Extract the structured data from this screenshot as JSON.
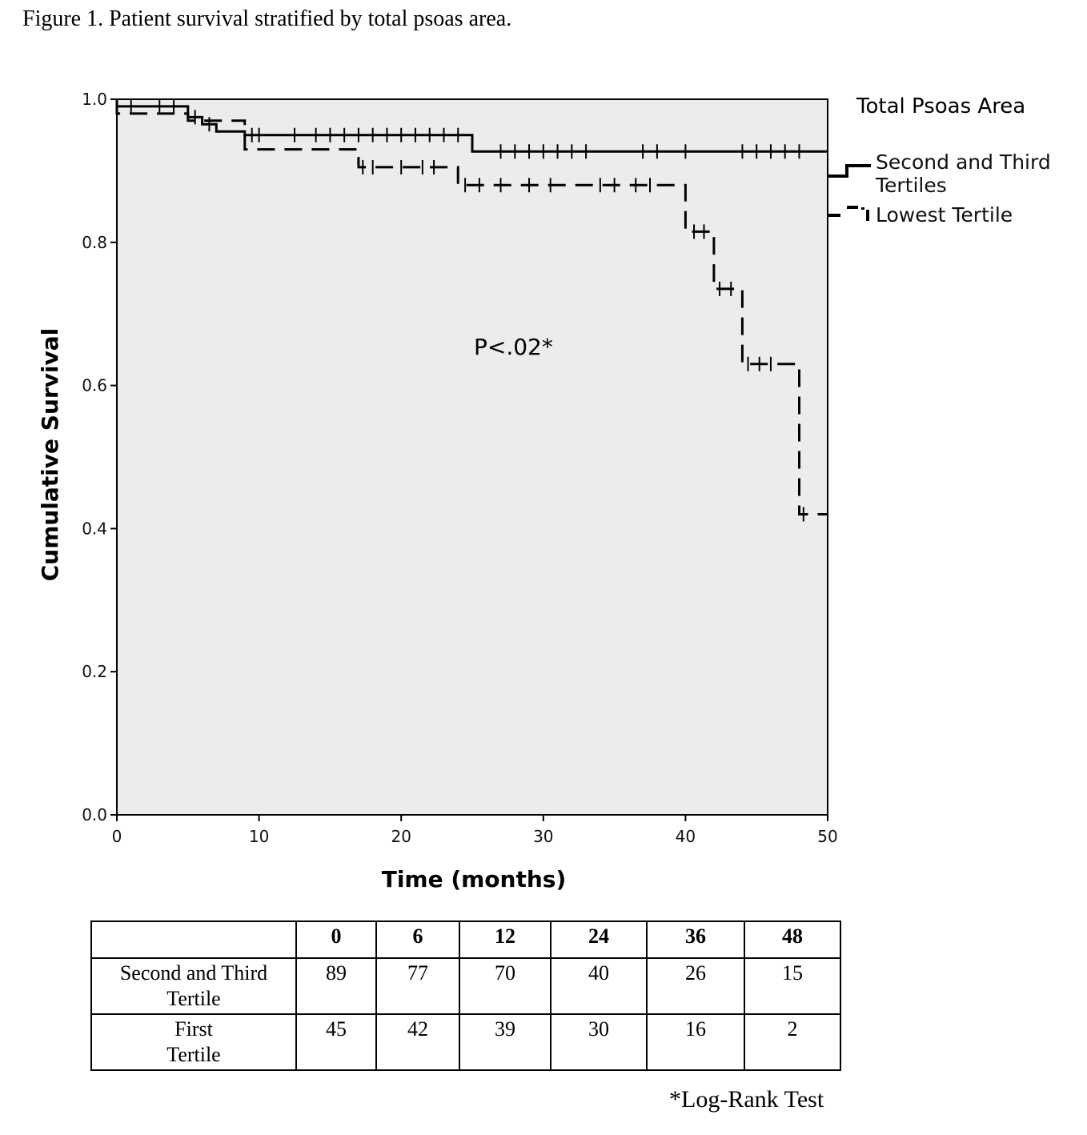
{
  "figure_title": "Figure 1. Patient survival stratified by total psoas area.",
  "legend": {
    "title": "Total Psoas Area",
    "entries": [
      {
        "label_lines": [
          "Second and Third",
          "Tertiles"
        ],
        "style": "solid"
      },
      {
        "label_lines": [
          "Lowest Tertile"
        ],
        "style": "dashed"
      }
    ]
  },
  "annotation": "P<.02*",
  "chart_data": {
    "type": "line",
    "subtype": "kaplan-meier step",
    "xlabel": "Time (months)",
    "ylabel": "Cumulative Survival",
    "xlim": [
      0,
      50
    ],
    "ylim": [
      0,
      1
    ],
    "xticks": [
      "0",
      "10",
      "20",
      "30",
      "40",
      "50"
    ],
    "yticks": [
      "0.0",
      "0.2",
      "0.4",
      "0.6",
      "0.8",
      "1.0"
    ],
    "background": "#ececec",
    "grid": false,
    "legend_position": "right",
    "series": [
      {
        "name": "Second and Third Tertiles",
        "style": "solid",
        "steps": [
          [
            0,
            1.0
          ],
          [
            0,
            0.99
          ],
          [
            5,
            0.99
          ],
          [
            5,
            0.975
          ],
          [
            6,
            0.975
          ],
          [
            6,
            0.965
          ],
          [
            7,
            0.965
          ],
          [
            7,
            0.955
          ],
          [
            9,
            0.955
          ],
          [
            9,
            0.95
          ],
          [
            25,
            0.95
          ],
          [
            25,
            0.927
          ],
          [
            50,
            0.927
          ]
        ],
        "censor_times": [
          1,
          3,
          4,
          5.5,
          6.5,
          9.5,
          10,
          12.5,
          14,
          15,
          16,
          17,
          18,
          19,
          20,
          21,
          22,
          23,
          24,
          27,
          28,
          29,
          30,
          31,
          32,
          33,
          37,
          38,
          40,
          44,
          45,
          46,
          47,
          48
        ]
      },
      {
        "name": "Lowest Tertile",
        "style": "dashed",
        "steps": [
          [
            0,
            1.0
          ],
          [
            0,
            0.98
          ],
          [
            5,
            0.98
          ],
          [
            5,
            0.97
          ],
          [
            9,
            0.97
          ],
          [
            9,
            0.93
          ],
          [
            17,
            0.93
          ],
          [
            17,
            0.905
          ],
          [
            24,
            0.905
          ],
          [
            24,
            0.88
          ],
          [
            40,
            0.88
          ],
          [
            40,
            0.815
          ],
          [
            42,
            0.815
          ],
          [
            42,
            0.735
          ],
          [
            44,
            0.735
          ],
          [
            44,
            0.63
          ],
          [
            48,
            0.63
          ],
          [
            48,
            0.42
          ],
          [
            50,
            0.42
          ]
        ],
        "censor_times": [
          17.3,
          18,
          20,
          21.5,
          22.3,
          24.5,
          25.5,
          27,
          29,
          30.5,
          34,
          35,
          36.5,
          37.5,
          40.6,
          41.3,
          42.4,
          43.2,
          44.4,
          45.2,
          46,
          48.3
        ]
      }
    ]
  },
  "risk_table": {
    "columns": [
      "",
      "0",
      "6",
      "12",
      "24",
      "36",
      "48"
    ],
    "rows": [
      {
        "label_lines": [
          "Second and Third",
          "Tertile"
        ],
        "values": [
          "89",
          "77",
          "70",
          "40",
          "26",
          "15"
        ]
      },
      {
        "label_lines": [
          "First",
          "Tertile"
        ],
        "values": [
          "45",
          "42",
          "39",
          "30",
          "16",
          "2"
        ]
      }
    ]
  },
  "footnote": "*Log-Rank Test"
}
